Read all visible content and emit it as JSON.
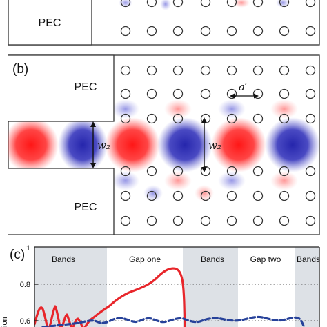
{
  "panel_a": {
    "pec_label": "PEC"
  },
  "panel_b": {
    "letter": "(b)",
    "pec_top": "PEC",
    "pec_bottom": "PEC",
    "lattice_label": "a′",
    "width_label_left": "w₂",
    "width_label_right": "w₂"
  },
  "panel_c": {
    "letter": "(c)",
    "region_labels": [
      "Bands",
      "Gap one",
      "Bands",
      "Gap two",
      "Bands"
    ],
    "y_ticks": [
      "1",
      "0.8",
      "0.6"
    ],
    "y_axis_partial": "ion",
    "colors": {
      "red_curve": "#e8262b",
      "blue_curve": "#27429a",
      "band_shade": "#dde1e6"
    }
  }
}
